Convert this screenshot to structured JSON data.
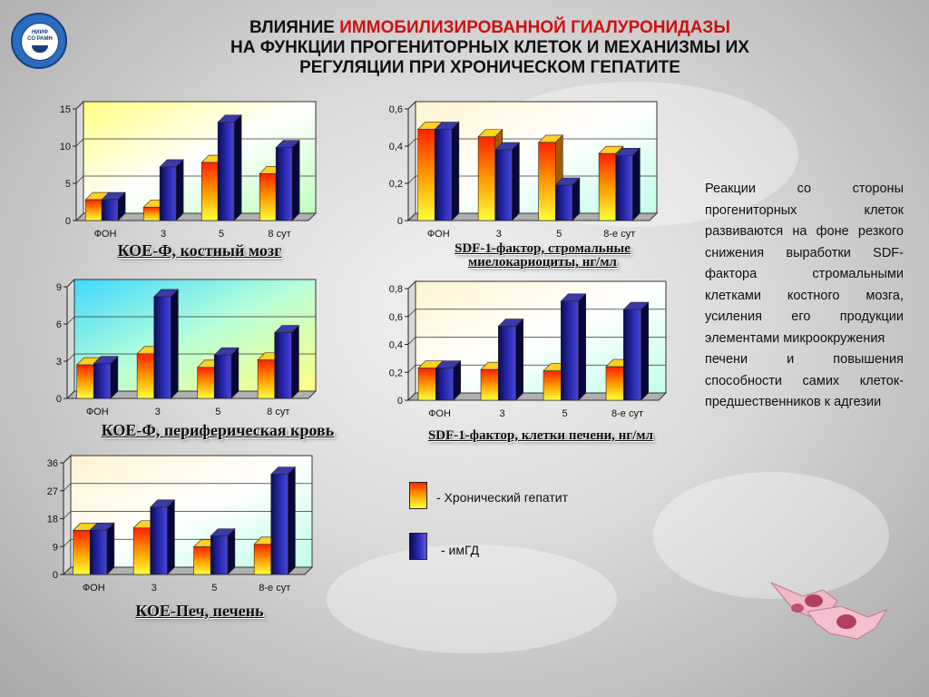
{
  "title": {
    "line1_prefix": "ВЛИЯНИЕ ",
    "line1_highlight": "ИММОБИЛИЗИРОВАННОЙ ГИАЛУРОНИДАЗЫ",
    "line2": "НА ФУНКЦИИ ПРОГЕНИТОРНЫХ КЛЕТОК И МЕХАНИЗМЫ ИХ",
    "line3": "РЕГУЛЯЦИИ ПРИ ХРОНИЧЕСКОМ ГЕПАТИТЕ"
  },
  "logo": {
    "line1": "НИИФ",
    "line2": "СО РАМН"
  },
  "colors": {
    "hepatitis": "#ff8a00",
    "imgd": "#1c1c8c",
    "title_highlight": "#cc1111"
  },
  "legend": {
    "hepatitis": "- Хронический гепатит",
    "imgd": "- имГД"
  },
  "side_text": {
    "p1": "Реакции со стороны прогениторных клеток развиваются на фоне резкого снижения выработки SDF-фактора стромальными клетками костного мозга, усиления его продукции элементами микроокружения",
    "p2": "печени и повышения способности самих клеток-предшественников к адгезии"
  },
  "chart_data": [
    {
      "id": "c1",
      "type": "bar",
      "title": "КОЕ-Ф, костный мозг",
      "categories": [
        "ФОН",
        "3",
        "5",
        "8 сут"
      ],
      "ylim": [
        0,
        15
      ],
      "yticks": [
        "0",
        "5",
        "10",
        "15"
      ],
      "series": [
        {
          "name": "Хронический гепатит",
          "values": [
            2.8,
            1.8,
            7.8,
            6.3
          ]
        },
        {
          "name": "имГД",
          "values": [
            2.8,
            7.2,
            13.2,
            9.8
          ]
        }
      ]
    },
    {
      "id": "c2",
      "type": "bar",
      "title": "SDF-1-фактор, стромальные миелокариоциты, нг/мл",
      "categories": [
        "ФОН",
        "3",
        "5",
        "8-е сут"
      ],
      "ylim": [
        0,
        0.6
      ],
      "yticks": [
        "0",
        "0,2",
        "0,4",
        "0,6"
      ],
      "series": [
        {
          "name": "Хронический гепатит",
          "values": [
            0.49,
            0.45,
            0.42,
            0.36
          ]
        },
        {
          "name": "имГД",
          "values": [
            0.49,
            0.38,
            0.19,
            0.35
          ]
        }
      ]
    },
    {
      "id": "c3",
      "type": "bar",
      "title": "КОЕ-Ф, периферическая кровь",
      "categories": [
        "ФОН",
        "3",
        "5",
        "8 сут"
      ],
      "ylim": [
        0,
        9
      ],
      "yticks": [
        "0",
        "3",
        "6",
        "9"
      ],
      "series": [
        {
          "name": "Хронический гепатит",
          "values": [
            2.7,
            3.6,
            2.5,
            3.1
          ]
        },
        {
          "name": "имГД",
          "values": [
            2.8,
            8.2,
            3.5,
            5.3
          ]
        }
      ]
    },
    {
      "id": "c4",
      "type": "bar",
      "title": "SDF-1-фактор, клетки печени, нг/мл",
      "categories": [
        "ФОН",
        "3",
        "5",
        "8-е сут"
      ],
      "ylim": [
        0,
        0.8
      ],
      "yticks": [
        "0",
        "0,2",
        "0,4",
        "0,6",
        "0,8"
      ],
      "series": [
        {
          "name": "Хронический гепатит",
          "values": [
            0.23,
            0.22,
            0.21,
            0.24
          ]
        },
        {
          "name": "имГД",
          "values": [
            0.23,
            0.53,
            0.71,
            0.65
          ]
        }
      ]
    },
    {
      "id": "c5",
      "type": "bar",
      "title": "КОЕ-Печ, печень",
      "categories": [
        "ФОН",
        "3",
        "5",
        "8-е сут"
      ],
      "ylim": [
        0,
        36
      ],
      "yticks": [
        "0",
        "9",
        "18",
        "27",
        "36"
      ],
      "series": [
        {
          "name": "Хронический гепатит",
          "values": [
            14.2,
            15.0,
            8.9,
            9.7
          ]
        },
        {
          "name": "имГД",
          "values": [
            14.3,
            21.7,
            12.4,
            32.3
          ]
        }
      ]
    }
  ]
}
